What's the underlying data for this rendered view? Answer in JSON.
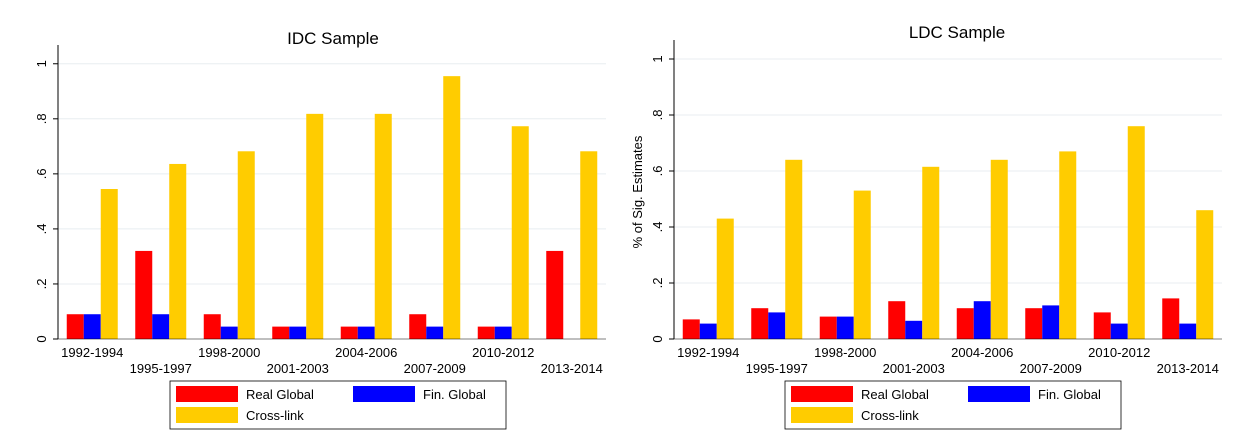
{
  "chart_data": [
    {
      "type": "bar",
      "title": "IDC Sample",
      "xlabel": "",
      "ylabel": "",
      "ylim": [
        0,
        1.05
      ],
      "yticks": [
        0,
        0.2,
        0.4,
        0.6,
        0.8,
        1
      ],
      "ytick_labels": [
        "0",
        ".2",
        ".4",
        ".6",
        ".8",
        "1"
      ],
      "grid": true,
      "legend_position": "bottom",
      "categories": [
        "1992-1994",
        "1995-1997",
        "1998-2000",
        "2001-2003",
        "2004-2006",
        "2007-2009",
        "2010-2012",
        "2013-2014"
      ],
      "series": [
        {
          "name": "Real Global",
          "color": "#ff0000",
          "values": [
            0.09,
            0.32,
            0.09,
            0.045,
            0.045,
            0.09,
            0.045,
            0.32
          ]
        },
        {
          "name": "Fin. Global",
          "color": "#0000ff",
          "values": [
            0.09,
            0.09,
            0.045,
            0.045,
            0.045,
            0.045,
            0.045,
            0
          ]
        },
        {
          "name": "Cross-link",
          "color": "#ffcc00",
          "values": [
            0.545,
            0.636,
            0.682,
            0.818,
            0.818,
            0.955,
            0.773,
            0.682
          ]
        }
      ]
    },
    {
      "type": "bar",
      "title": "LDC Sample",
      "xlabel": "",
      "ylabel": "% of Sig. Estimates",
      "ylim": [
        0,
        1.05
      ],
      "yticks": [
        0,
        0.2,
        0.4,
        0.6,
        0.8,
        1
      ],
      "ytick_labels": [
        "0",
        ".2",
        ".4",
        ".6",
        ".8",
        "1"
      ],
      "grid": true,
      "legend_position": "bottom",
      "categories": [
        "1992-1994",
        "1995-1997",
        "1998-2000",
        "2001-2003",
        "2004-2006",
        "2007-2009",
        "2010-2012",
        "2013-2014"
      ],
      "series": [
        {
          "name": "Real Global",
          "color": "#ff0000",
          "values": [
            0.07,
            0.11,
            0.08,
            0.135,
            0.11,
            0.11,
            0.095,
            0.145
          ]
        },
        {
          "name": "Fin. Global",
          "color": "#0000ff",
          "values": [
            0.055,
            0.095,
            0.08,
            0.065,
            0.135,
            0.12,
            0.055,
            0.055
          ]
        },
        {
          "name": "Cross-link",
          "color": "#ffcc00",
          "values": [
            0.43,
            0.64,
            0.53,
            0.615,
            0.64,
            0.67,
            0.76,
            0.46
          ]
        }
      ]
    }
  ]
}
